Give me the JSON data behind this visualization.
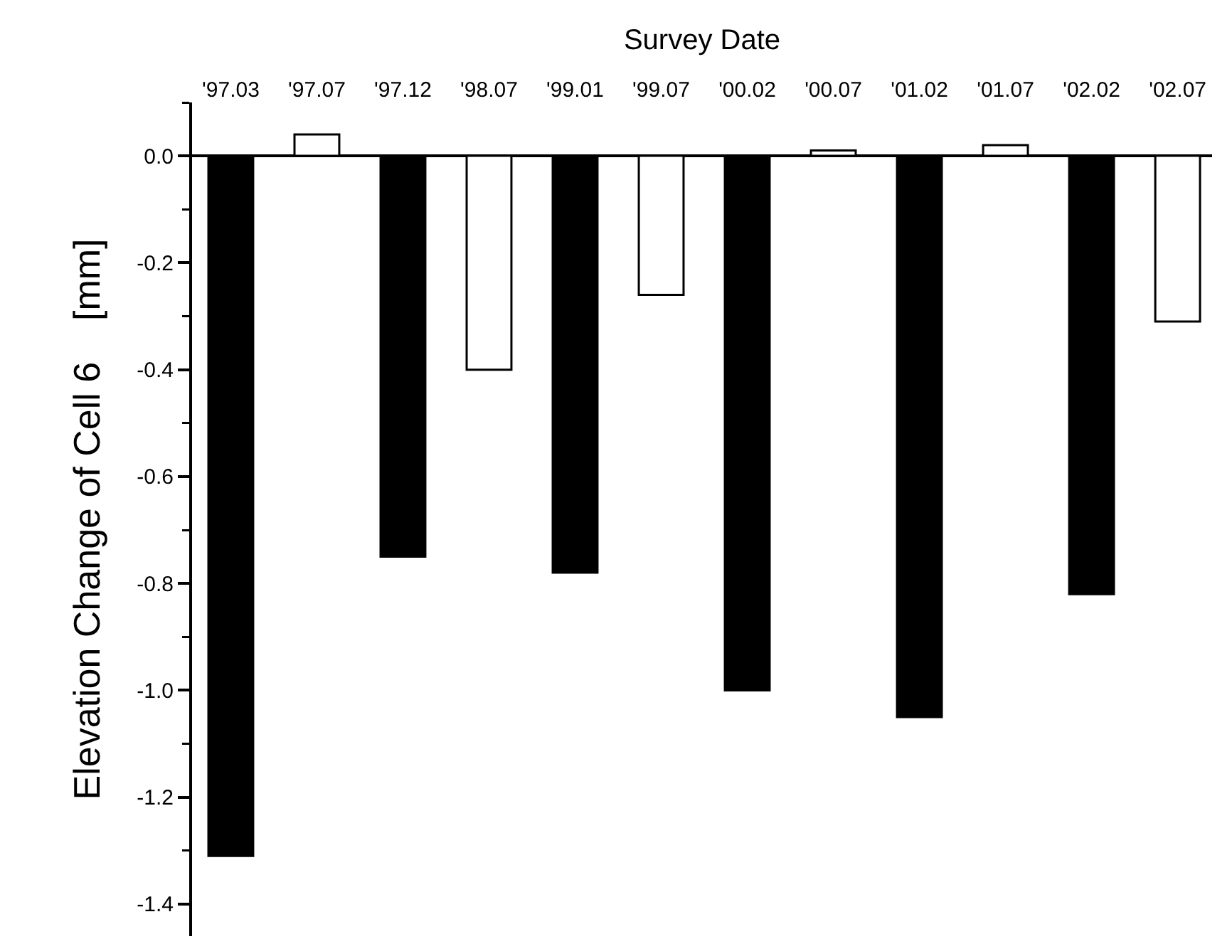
{
  "chart_data": {
    "type": "bar",
    "xlabel": "Survey Date",
    "ylabel": "Elevation Change of Cell 6    [mm]",
    "categories": [
      "'97.03",
      "'97.07",
      "'97.12",
      "'98.07",
      "'99.01",
      "'99.07",
      "'00.02",
      "'00.07",
      "'01.02",
      "'01.07",
      "'02.02",
      "'02.07"
    ],
    "values": [
      -1.31,
      0.04,
      -0.75,
      -0.4,
      -0.78,
      -0.26,
      -1.0,
      0.01,
      -1.05,
      0.02,
      -0.82,
      -0.31
    ],
    "colors": [
      "#000000",
      "#ffffff",
      "#000000",
      "#ffffff",
      "#000000",
      "#ffffff",
      "#000000",
      "#ffffff",
      "#000000",
      "#ffffff",
      "#000000",
      "#ffffff"
    ],
    "ylim": [
      -1.46,
      0.1
    ],
    "yticks": [
      {
        "value": 0,
        "label": "0.0"
      },
      -0.2,
      -0.4,
      -0.6,
      -0.8,
      {
        "value": -1,
        "label": "-1.0"
      },
      -1.2,
      -1.4
    ]
  }
}
